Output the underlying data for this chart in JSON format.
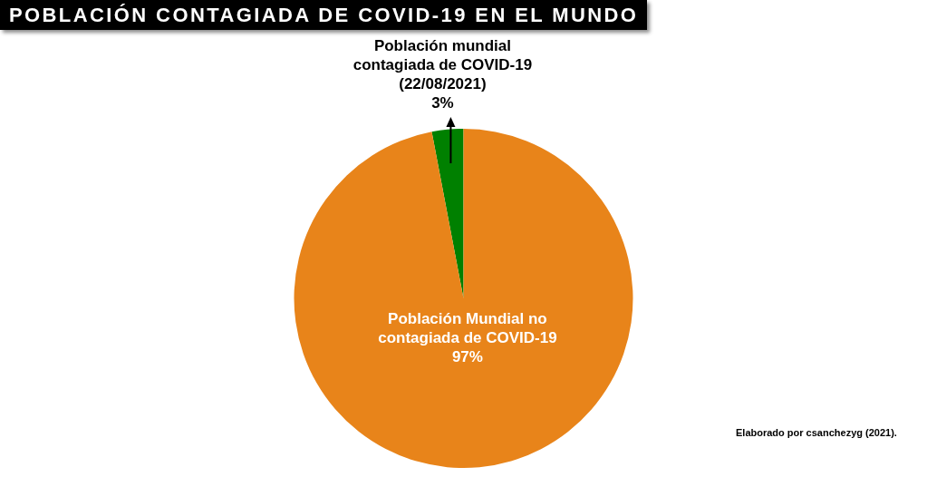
{
  "chart_data": {
    "type": "pie",
    "title": "POBLACIÓN CONTAGIADA DE COVID-19 EN EL MUNDO",
    "categories": [
      "Población mundial contagiada de COVID-19 (22/08/2021)",
      "Población Mundial no contagiada de COVID-19"
    ],
    "values": [
      3,
      97
    ],
    "colors": [
      "#008000",
      "#e8841a"
    ],
    "value_labels": [
      "3%",
      "97%"
    ],
    "legend": false,
    "annotations": [
      "Elaborado por csanchezyg (2021)."
    ]
  }
}
